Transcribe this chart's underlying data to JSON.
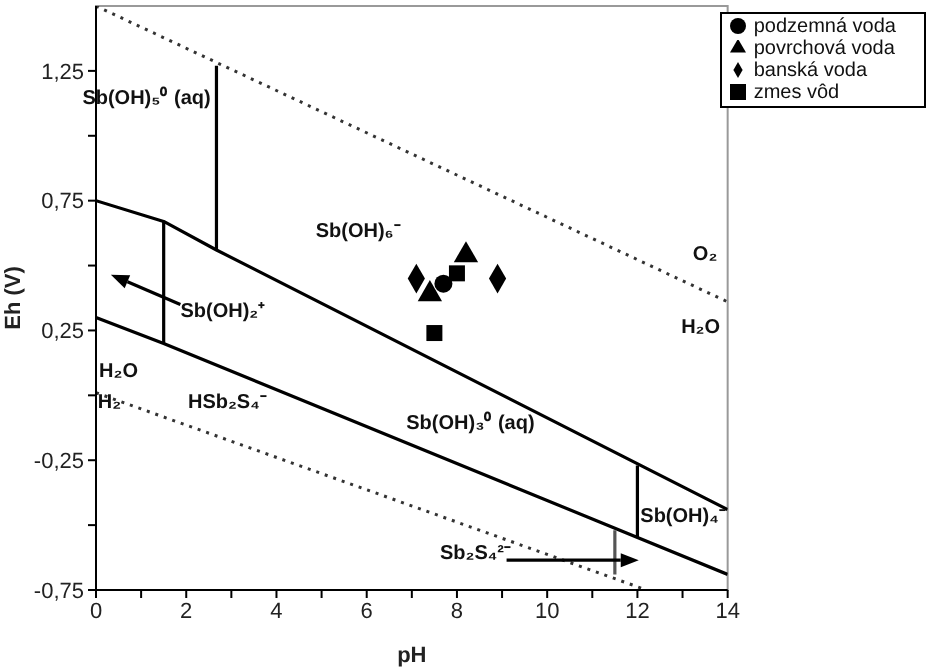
{
  "chart_data": {
    "type": "line",
    "xlabel": "pH",
    "ylabel": "Eh (V)",
    "xlim": [
      0,
      14
    ],
    "xticks": [
      0,
      {
        "value": 1,
        "label": null
      },
      2,
      {
        "value": 3,
        "label": null
      },
      4,
      {
        "value": 5,
        "label": null
      },
      6,
      {
        "value": 7,
        "label": null
      },
      8,
      {
        "value": 9,
        "label": null
      },
      10,
      {
        "value": 11,
        "label": null
      },
      12,
      {
        "value": 13,
        "label": null
      },
      14
    ],
    "ylim": [
      -0.75,
      1.5
    ],
    "yticks": [
      {
        "value": -0.75,
        "label": "-0,75"
      },
      {
        "value": -0.5,
        "label": null
      },
      {
        "value": -0.25,
        "label": "-0,25"
      },
      {
        "value": 0,
        "label": null
      },
      {
        "value": 0.25,
        "label": "0,25"
      },
      {
        "value": 0.5,
        "label": null
      },
      {
        "value": 0.75,
        "label": "0,75"
      },
      {
        "value": 1,
        "label": null
      },
      {
        "value": 1.25,
        "label": "1,25"
      }
    ],
    "grid": false,
    "legend": "top right",
    "series": [
      {
        "color": "#000000",
        "line_style": "solid",
        "x": [
          0,
          1.5,
          2.67,
          14
        ],
        "values": [
          0.75,
          0.67,
          0.56,
          -0.44
        ]
      },
      {
        "color": "#000000",
        "line_style": "solid",
        "x": [
          0,
          1.5,
          14
        ],
        "values": [
          0.3,
          0.2,
          -0.69
        ]
      },
      {
        "color": "#000000",
        "line_style": "solid",
        "x": [
          1.5,
          1.5
        ],
        "values": [
          0.67,
          0.2
        ]
      },
      {
        "color": "#000000",
        "line_style": "solid",
        "x": [
          2.67,
          2.67
        ],
        "values": [
          0.56,
          1.27
        ]
      },
      {
        "color": "#000000",
        "line_style": "solid",
        "x": [
          12,
          12
        ],
        "values": [
          -0.27,
          -0.55
        ]
      },
      {
        "color": "#555555",
        "line_style": "solid",
        "x": [
          11.5,
          11.5
        ],
        "values": [
          -0.52,
          -0.69
        ]
      },
      {
        "color": "#333333",
        "line_style": "dotted",
        "x": [
          0,
          14
        ],
        "values": [
          1.5,
          0.36
        ]
      },
      {
        "color": "#333333",
        "line_style": "dotted",
        "x": [
          0,
          12.2
        ],
        "values": [
          0.01,
          -0.75
        ]
      },
      {
        "type": "scatter",
        "name": "podzemná voda",
        "marker": "circle",
        "color": "#000000",
        "x": [
          7.7
        ],
        "values": [
          0.43
        ]
      },
      {
        "type": "scatter",
        "name": "povrchová voda",
        "marker": "triangle",
        "color": "#000000",
        "x": [
          7.4,
          8.2
        ],
        "values": [
          0.39,
          0.54
        ]
      },
      {
        "type": "scatter",
        "name": "banská voda",
        "marker": "diamond",
        "color": "#000000",
        "x": [
          7.1,
          8.9
        ],
        "values": [
          0.45,
          0.45
        ]
      },
      {
        "type": "scatter",
        "name": "zmes vôd",
        "marker": "square",
        "color": "#000000",
        "x": [
          8.0,
          7.5
        ],
        "values": [
          0.47,
          0.24
        ]
      }
    ],
    "annotations": [
      "Sb(OH)₅⁰ (aq)",
      "Sb(OH)₆⁻",
      "Sb(OH)₂⁺",
      "O₂",
      "H₂O",
      "H₂O",
      "H₂",
      "HSb₂S₄⁻",
      "Sb(OH)₃⁰ (aq)",
      "Sb(OH)₄⁻",
      "Sb₂S₄²⁻"
    ]
  }
}
